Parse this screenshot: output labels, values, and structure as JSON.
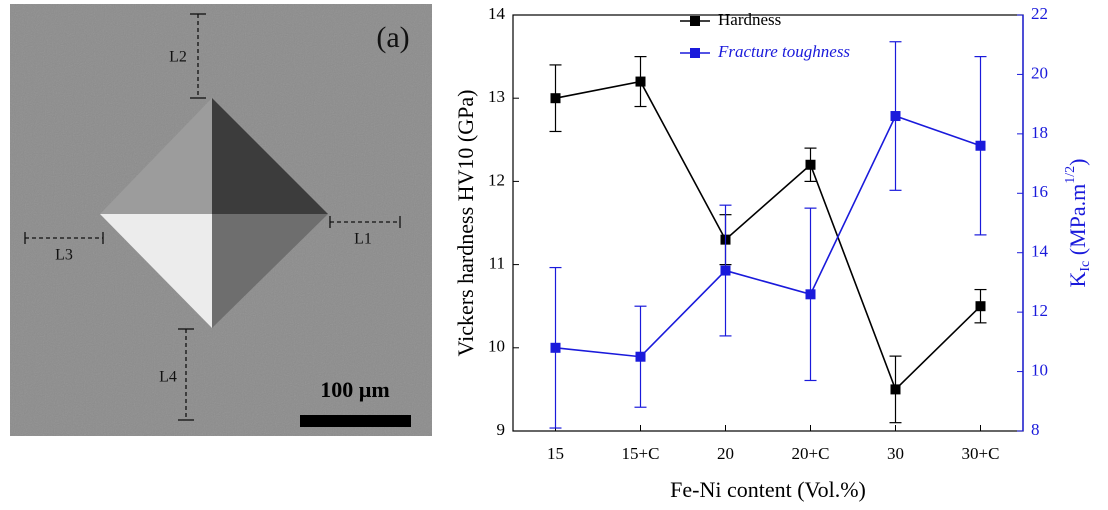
{
  "image_panel": {
    "panel_label": "(a)",
    "scale_bar": "100 µm",
    "measurements": [
      "L1",
      "L2",
      "L3",
      "L4"
    ]
  },
  "chart_data": {
    "type": "line",
    "xlabel": "Fe-Ni content (Vol.%)",
    "ylabel": "Vickers hardness HV10 (GPa)",
    "y2label": [
      "K",
      "Ic",
      " (MPa.m",
      "1/2",
      ")"
    ],
    "categories": [
      "15",
      "15+C",
      "20",
      "20+C",
      "30",
      "30+C"
    ],
    "ylim": [
      9,
      14
    ],
    "yticks": [
      9,
      10,
      11,
      12,
      13,
      14
    ],
    "y2lim": [
      8,
      22
    ],
    "y2ticks": [
      8,
      10,
      12,
      14,
      16,
      18,
      20,
      22
    ],
    "y2color": "#1a1adb",
    "legend": "upper center",
    "series": [
      {
        "name": "Hardness",
        "color": "#000000",
        "values": [
          13.0,
          13.2,
          11.3,
          12.2,
          9.5,
          10.5
        ],
        "errors": [
          0.4,
          0.3,
          0.3,
          0.2,
          0.4,
          0.2
        ]
      },
      {
        "name": "Fracture toughness",
        "color": "#1a1adb",
        "axis": "y2",
        "values": [
          10.8,
          10.5,
          13.4,
          12.6,
          18.6,
          17.6
        ],
        "errors": [
          2.7,
          1.7,
          2.2,
          2.9,
          2.5,
          3.0
        ]
      }
    ]
  }
}
